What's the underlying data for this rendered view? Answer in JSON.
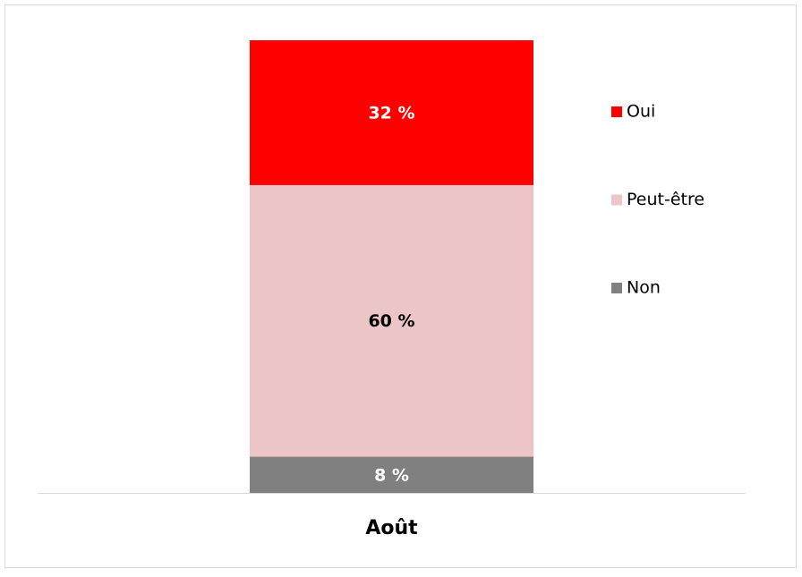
{
  "chart_data": {
    "type": "stacked_bar",
    "categories": [
      "Août"
    ],
    "series": [
      {
        "name": "Non",
        "color": "#808080",
        "label_color": "#ffffff",
        "values": [
          8
        ],
        "value_labels": [
          "8 %"
        ]
      },
      {
        "name": "Peut-être",
        "color": "#ecc6c6",
        "label_color": "#000000",
        "values": [
          60
        ],
        "value_labels": [
          "60 %"
        ]
      },
      {
        "name": "Oui",
        "color": "#ff0000",
        "label_color": "#ffffff",
        "values": [
          32
        ],
        "value_labels": [
          "32 %"
        ]
      }
    ],
    "legend": "right"
  }
}
